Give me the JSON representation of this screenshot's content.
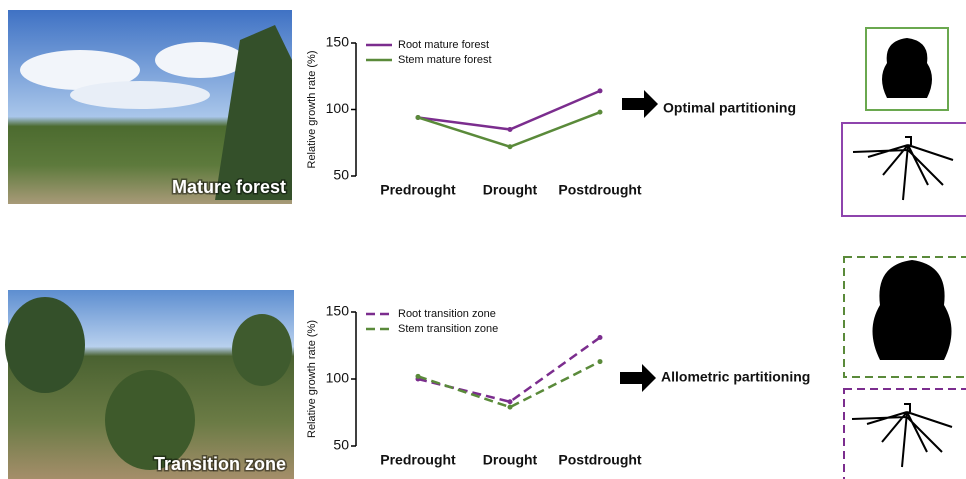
{
  "chart_data": [
    {
      "type": "line",
      "y_label": "Relative growth rate (%)",
      "categories": [
        "Predrought",
        "Drought",
        "Postdrought"
      ],
      "series": [
        {
          "name": "Root mature forest",
          "color": "#7b2d8e",
          "line_style": "solid",
          "values": [
            94,
            85,
            114
          ]
        },
        {
          "name": "Stem mature forest",
          "color": "#5a8a3a",
          "line_style": "solid",
          "values": [
            94,
            72,
            98
          ]
        }
      ],
      "ylim": [
        50,
        150
      ],
      "yticks": [
        50,
        100,
        150
      ],
      "legend": "upper left"
    },
    {
      "type": "line",
      "y_label": "Relative growth rate (%)",
      "categories": [
        "Predrought",
        "Drought",
        "Postdrought"
      ],
      "series": [
        {
          "name": "Root transition zone",
          "color": "#7b2d8e",
          "line_style": "dashed",
          "values": [
            100,
            83,
            131
          ]
        },
        {
          "name": "Stem transition zone",
          "color": "#5a8a3a",
          "line_style": "dashed",
          "values": [
            102,
            79,
            113
          ]
        }
      ],
      "ylim": [
        50,
        150
      ],
      "yticks": [
        50,
        100,
        150
      ],
      "legend": "upper left"
    }
  ],
  "photos": [
    "Mature forest",
    "Transition zone"
  ],
  "outcomes": [
    "Optimal partitioning",
    "Allometric partitioning"
  ]
}
